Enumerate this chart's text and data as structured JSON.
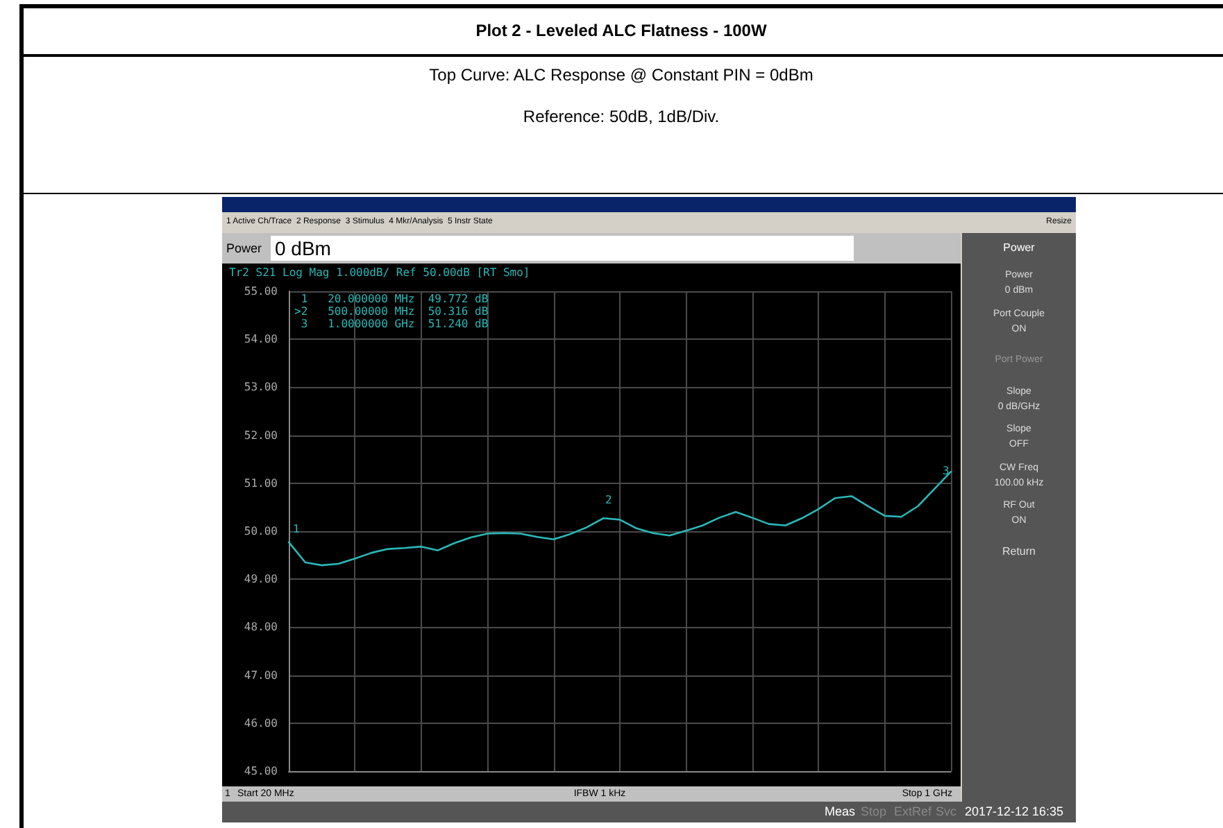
{
  "chart_data": {
    "type": "line",
    "title": "Plot 2 - Leveled ALC Flatness - 100W",
    "subtitle": "Top Curve: ALC Response @ Constant PIN = 0dBm",
    "annotations": [
      "Reference: 50dB, 1dB/Div.",
      "1 Active Ch/Trace  2 Response  3 Stimulus  4 Mkr/Analysis  5 Instr State",
      "Resize",
      "Power",
      "0 dBm",
      "Tr2 S21 Log Mag 1.000dB/ Ref 50.00dB [RT Smo]",
      " 1   20.000000 MHz  49.772 dB",
      ">2   500.00000 MHz  50.316 dB",
      " 3   1.0000000 GHz  51.240 dB",
      "1",
      "IFBW 1 kHz",
      "Power",
      "Power",
      "0 dBm",
      "Port Couple",
      "ON",
      "Port Power",
      "Slope",
      "0 dB/GHz",
      "Slope",
      "OFF",
      "CW Freq",
      "100.00 kHz",
      "RF Out",
      "ON",
      "Return",
      "Meas",
      "Stop",
      "ExtRef",
      "Svc",
      "2017-12-12 16:35",
      "Start 20 MHz",
      "Stop 1 GHz",
      "1",
      "2",
      "3"
    ],
    "categories": [
      null,
      null,
      null,
      null,
      null,
      null,
      null,
      null,
      null,
      null,
      null,
      null,
      null,
      null,
      null,
      null,
      null,
      null,
      null,
      null,
      null,
      null,
      null,
      null,
      null,
      null,
      null,
      null,
      null,
      null,
      null,
      null,
      null,
      null,
      null,
      null,
      null,
      null,
      null,
      null,
      null
    ],
    "series": [
      {
        "color": "#2ab8b8",
        "values": [
          49.77,
          49.35,
          49.29,
          49.32,
          49.43,
          49.55,
          49.63,
          49.65,
          49.68,
          49.6,
          49.75,
          49.87,
          49.95,
          49.96,
          49.95,
          49.88,
          49.83,
          49.94,
          50.08,
          50.27,
          50.24,
          50.06,
          49.96,
          49.91,
          50.01,
          50.12,
          50.28,
          50.4,
          50.28,
          50.15,
          50.12,
          50.27,
          50.46,
          50.69,
          50.73,
          50.52,
          50.32,
          50.3,
          50.52,
          50.88,
          51.24
        ]
      }
    ],
    "ylim": [
      45,
      55
    ],
    "yticks": [
      {
        "value": 45,
        "label": "45.00"
      },
      {
        "value": 46,
        "label": "46.00"
      },
      {
        "value": 47,
        "label": "47.00"
      },
      {
        "value": 48,
        "label": "48.00"
      },
      {
        "value": 49,
        "label": "49.00"
      },
      {
        "value": 50,
        "label": "50.00"
      },
      {
        "value": 51,
        "label": "51.00"
      },
      {
        "value": 52,
        "label": "52.00"
      },
      {
        "value": 53,
        "label": "53.00"
      },
      {
        "value": 54,
        "label": "54.00"
      },
      {
        "value": 55,
        "label": "55.00"
      }
    ],
    "grid": true,
    "marker": "none",
    "line_style": "solid"
  }
}
